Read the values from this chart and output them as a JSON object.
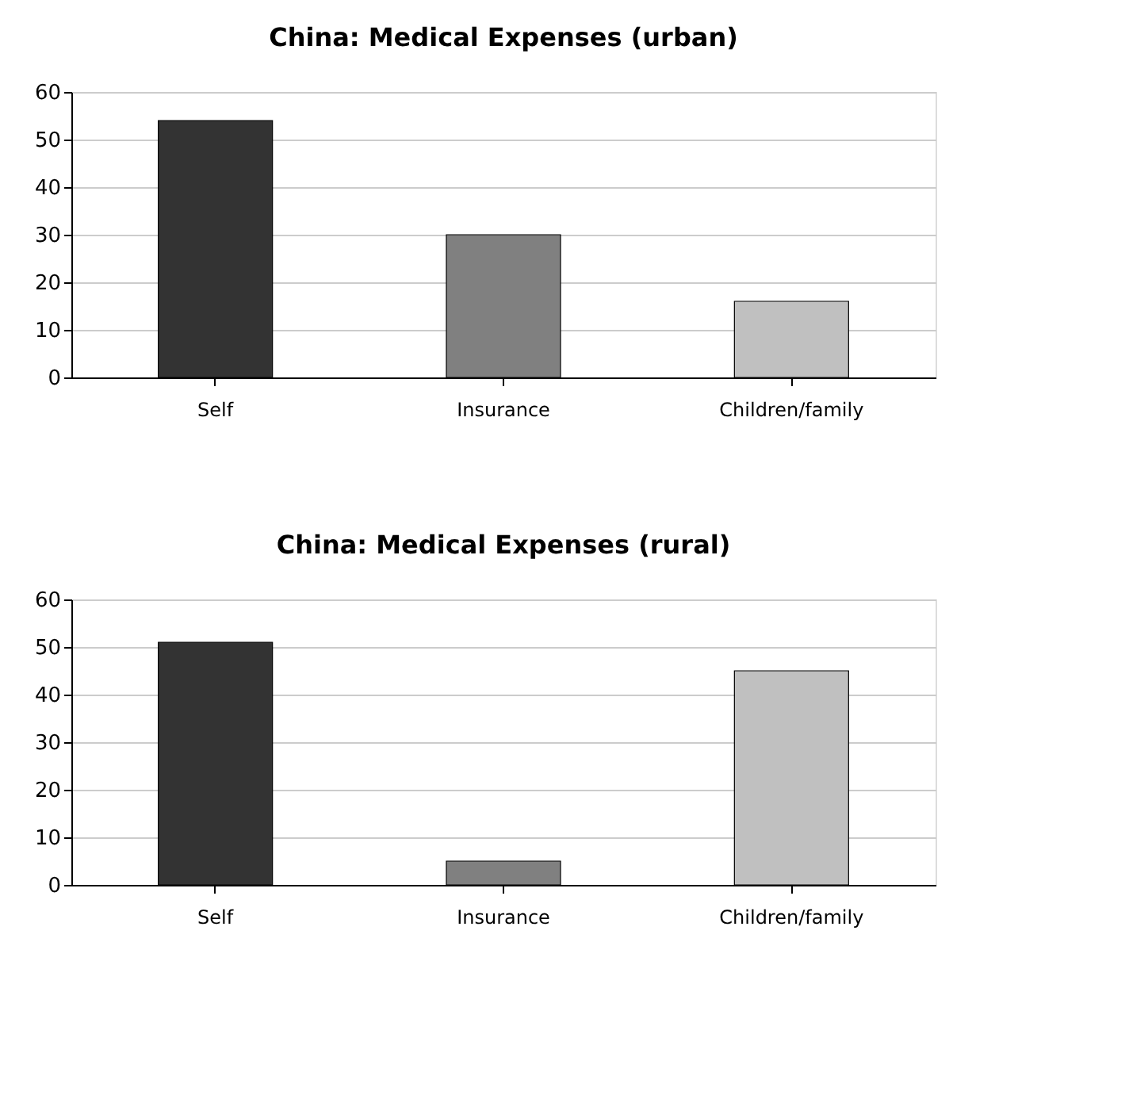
{
  "chart_data": [
    {
      "type": "bar",
      "title": "China: Medical Expenses (urban)",
      "categories": [
        "Self",
        "Insurance",
        "Children/family"
      ],
      "values": [
        54,
        30,
        16
      ],
      "colors": [
        "#333333",
        "#808080",
        "#c0c0c0"
      ],
      "ylim": [
        0,
        60
      ],
      "yticks": [
        0,
        10,
        20,
        30,
        40,
        50,
        60
      ],
      "grid": "y"
    },
    {
      "type": "bar",
      "title": "China: Medical Expenses (rural)",
      "categories": [
        "Self",
        "Insurance",
        "Children/family"
      ],
      "values": [
        51,
        5,
        45
      ],
      "colors": [
        "#333333",
        "#808080",
        "#c0c0c0"
      ],
      "ylim": [
        0,
        60
      ],
      "yticks": [
        0,
        10,
        20,
        30,
        40,
        50,
        60
      ],
      "grid": "y"
    }
  ]
}
